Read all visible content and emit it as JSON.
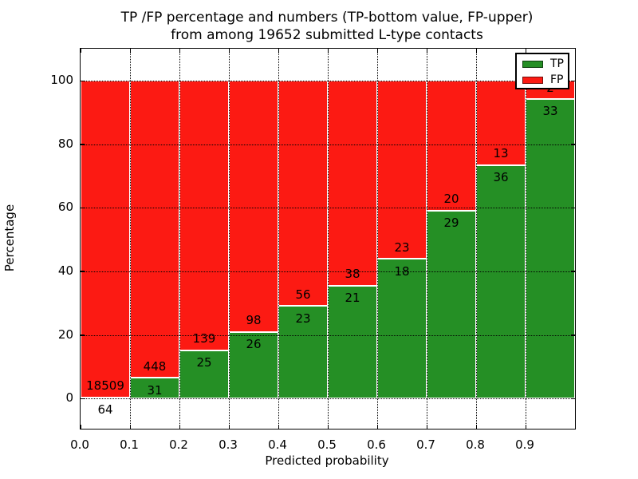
{
  "figure": {
    "title_line1": "TP /FP percentage and numbers (TP-bottom value, FP-upper)",
    "title_line2": "from among 19652 submitted L-type contacts"
  },
  "axes": {
    "xlabel": "Predicted probability",
    "ylabel": "Percentage",
    "xtick_labels": [
      "0.0",
      "0.1",
      "0.2",
      "0.3",
      "0.4",
      "0.5",
      "0.6",
      "0.7",
      "0.8",
      "0.9"
    ],
    "ytick_labels": [
      "0",
      "20",
      "40",
      "60",
      "80",
      "100"
    ]
  },
  "legend": {
    "tp_label": "TP",
    "fp_label": "FP"
  },
  "colors": {
    "tp": "#258f25",
    "fp": "#fc1a13",
    "grid": "#000000",
    "bar_edge": "#ffffff"
  },
  "chart_data": {
    "type": "bar",
    "stacked": true,
    "percent_normalized": true,
    "title": "TP /FP percentage and numbers (TP-bottom value, FP-upper) from among 19652 submitted L-type contacts",
    "xlabel": "Predicted probability",
    "ylabel": "Percentage",
    "total_contacts": 19652,
    "bins_start": [
      0.0,
      0.1,
      0.2,
      0.3,
      0.4,
      0.5,
      0.6,
      0.7,
      0.8,
      0.9
    ],
    "bin_width": 0.1,
    "series": [
      {
        "name": "TP",
        "color": "#258f25",
        "counts": [
          64,
          31,
          25,
          26,
          23,
          21,
          18,
          29,
          36,
          33
        ]
      },
      {
        "name": "FP",
        "color": "#fc1a13",
        "counts": [
          18509,
          448,
          139,
          98,
          56,
          38,
          23,
          20,
          13,
          2
        ]
      }
    ],
    "bar_labels_note": "TP count printed below green/red boundary, FP count printed above it; FP label of last bar hidden behind legend",
    "xlim": [
      0,
      1
    ],
    "ylim": [
      -9.5,
      110.1
    ],
    "yticks": [
      0,
      20,
      40,
      60,
      80,
      100
    ],
    "grid": "dotted",
    "legend_position": "upper right"
  }
}
